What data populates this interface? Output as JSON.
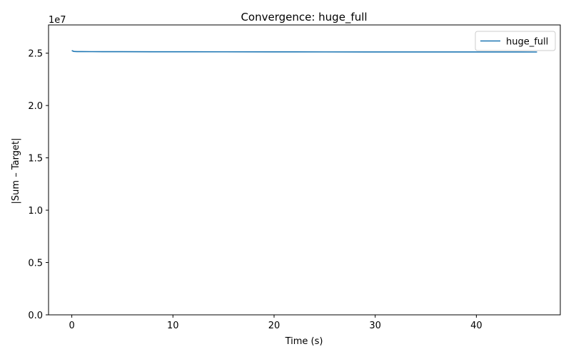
{
  "chart_data": {
    "type": "line",
    "title": "Convergence: huge_full",
    "xlabel": "Time (s)",
    "ylabel": "|Sum – Target|",
    "offset_label": "1e7",
    "xlim": [
      -2.3,
      48.3
    ],
    "ylim": [
      0,
      27700000
    ],
    "x_ticks": [
      0,
      10,
      20,
      30,
      40
    ],
    "x_tick_labels": [
      "0",
      "10",
      "20",
      "30",
      "40"
    ],
    "y_ticks": [
      0,
      5000000,
      10000000,
      15000000,
      20000000,
      25000000
    ],
    "y_tick_labels": [
      "0.0",
      "0.5",
      "1.0",
      "1.5",
      "2.0",
      "2.5"
    ],
    "grid": false,
    "legend_position": "top-right",
    "series": [
      {
        "name": "huge_full",
        "color": "#1f77b4",
        "x": [
          0,
          0.2,
          0.5,
          1,
          2,
          3,
          5,
          8,
          10,
          12,
          15,
          20,
          22,
          25,
          30,
          35,
          40,
          44,
          46
        ],
        "y": [
          25250000,
          25170000,
          25155000,
          25150000,
          25148000,
          25145000,
          25140000,
          25138000,
          25135000,
          25132000,
          25130000,
          25127000,
          25124000,
          25122000,
          25120000,
          25118000,
          25116000,
          25115000,
          25114000
        ]
      }
    ]
  }
}
